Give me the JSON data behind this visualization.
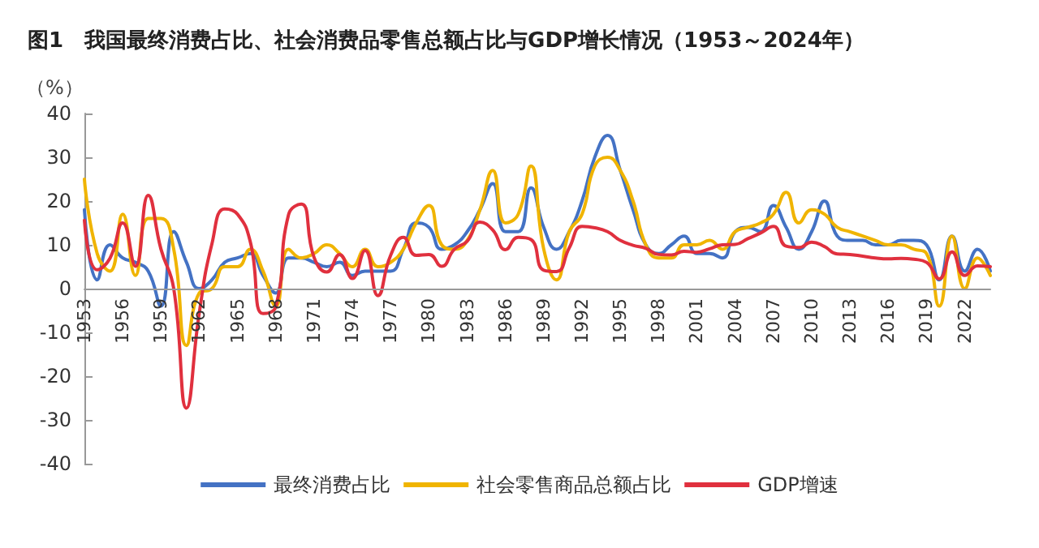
{
  "chart_data": {
    "type": "line",
    "title": "图1　我国最终消费占比、社会消费品零售总额占比与GDP增长情况（1953～2024年）",
    "ylabel": "（%）",
    "categories": [
      "1953",
      null,
      null,
      "1956",
      null,
      null,
      "1959",
      null,
      null,
      "1962",
      null,
      null,
      "1965",
      null,
      null,
      "1968",
      null,
      null,
      "1971",
      null,
      null,
      "1974",
      null,
      null,
      "1977",
      null,
      null,
      "1980",
      null,
      null,
      "1983",
      null,
      null,
      "1986",
      null,
      null,
      "1989",
      null,
      null,
      "1992",
      null,
      null,
      "1995",
      null,
      null,
      "1998",
      null,
      null,
      "2001",
      null,
      null,
      "2004",
      null,
      null,
      "2007",
      null,
      null,
      "2010",
      null,
      null,
      "2013",
      null,
      null,
      "2016",
      null,
      null,
      "2019",
      null,
      null,
      "2022",
      null,
      null
    ],
    "series": [
      {
        "name": "最终消费占比",
        "color": "#4472c4",
        "values": [
          18,
          2,
          10,
          7,
          6,
          4,
          -4,
          13,
          6,
          0,
          2,
          6,
          7,
          8,
          3,
          -1,
          7,
          7,
          6,
          5,
          6,
          3,
          4,
          4,
          4,
          9,
          15,
          14,
          9,
          10,
          13,
          18,
          24,
          13,
          13,
          23,
          14,
          9,
          13,
          20,
          30,
          35,
          27,
          18,
          10,
          8,
          10,
          12,
          8,
          8,
          7,
          13,
          14,
          13,
          19,
          14,
          9,
          13,
          20,
          12,
          11,
          11,
          10,
          10,
          11,
          11,
          10,
          2,
          12,
          4,
          9,
          4
        ]
      },
      {
        "name": "社会零售商品总额占比",
        "color": "#f0b400",
        "values": [
          25,
          8,
          4,
          17,
          3,
          16,
          16,
          9,
          -13,
          -1,
          0,
          5,
          5,
          9,
          4,
          -4,
          9,
          7,
          8,
          10,
          8,
          5,
          9,
          5,
          6,
          9,
          15,
          19,
          10,
          9,
          11,
          18,
          27,
          15,
          17,
          28,
          9,
          2,
          13,
          17,
          28,
          30,
          27,
          20,
          10,
          7,
          7,
          10,
          10,
          11,
          9,
          13,
          14,
          15,
          17,
          22,
          15,
          18,
          17,
          14,
          13,
          12,
          11,
          10,
          10,
          9,
          8,
          -4,
          12,
          0,
          7,
          3
        ]
      },
      {
        "name": "GDP增速",
        "color": "#e0303e",
        "values": [
          15.6,
          4.3,
          6.9,
          15,
          5.1,
          21.3,
          9,
          0,
          -27.3,
          -5.6,
          10.3,
          18.2,
          17,
          10.7,
          -5.7,
          -4.1,
          16.9,
          19.3,
          7.1,
          3.8,
          7.8,
          2.3,
          8.7,
          -1.6,
          7.6,
          11.7,
          7.6,
          7.8,
          5.1,
          9,
          10.8,
          15.2,
          13.4,
          8.9,
          11.7,
          11.2,
          4.2,
          3.9,
          9.3,
          14.2,
          13.9,
          13,
          11,
          9.9,
          9.2,
          7.8,
          7.7,
          8.5,
          8.3,
          9.1,
          10,
          10.1,
          11.4,
          12.7,
          14.2,
          9.7,
          9.4,
          10.6,
          9.6,
          7.9,
          7.8,
          7.4,
          7,
          6.8,
          6.9,
          6.7,
          6,
          2.2,
          8.4,
          3,
          5.2,
          5
        ]
      }
    ],
    "ylim": [
      -40,
      40
    ],
    "yticks": [
      -40,
      -30,
      -20,
      -10,
      0,
      10,
      20,
      30,
      40
    ],
    "grid": false,
    "legend": "bottom",
    "marker": "none",
    "line_style": "solid"
  }
}
